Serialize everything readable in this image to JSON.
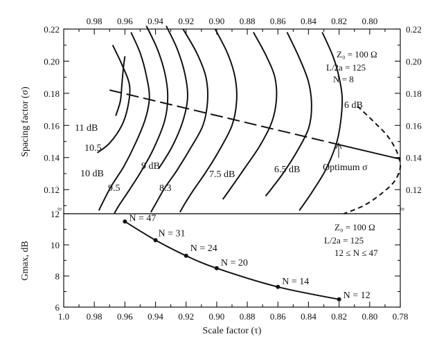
{
  "chart_data": [
    {
      "type": "line",
      "panel": "top",
      "xlabel": "Scale factor (τ)",
      "ylabel": "Spacing factor (σ)",
      "xlim": [
        1.0,
        0.78
      ],
      "ylim": [
        0.105,
        0.22
      ],
      "x_ticks": [
        "0.98",
        "0.96",
        "0.94",
        "0.92",
        "0.90",
        "0.88",
        "0.86",
        "0.84",
        "0.82",
        "0.80"
      ],
      "y_ticks": [
        "0.22",
        "0.20",
        "0.18",
        "0.16",
        "0.14",
        "0.12"
      ],
      "annotation": [
        "Z₀ = 100 Ω",
        "L/2a = 125",
        "N = 8"
      ],
      "contours": [
        {
          "label": "11 dB",
          "points": [
            [
              0.96,
              0.203
            ],
            [
              0.961,
              0.196
            ],
            [
              0.962,
              0.185
            ],
            [
              0.963,
              0.175
            ],
            [
              0.966,
              0.166
            ]
          ]
        },
        {
          "label": "10.5",
          "points": [
            [
              0.968,
              0.21
            ],
            [
              0.962,
              0.198
            ],
            [
              0.957,
              0.185
            ],
            [
              0.958,
              0.172
            ],
            [
              0.962,
              0.16
            ],
            [
              0.97,
              0.149
            ],
            [
              0.978,
              0.143
            ]
          ]
        },
        {
          "label": "10 dB",
          "points": [
            [
              0.956,
              0.218
            ],
            [
              0.95,
              0.205
            ],
            [
              0.946,
              0.191
            ],
            [
              0.944,
              0.177
            ],
            [
              0.947,
              0.163
            ],
            [
              0.954,
              0.147
            ],
            [
              0.961,
              0.134
            ],
            [
              0.969,
              0.122
            ],
            [
              0.975,
              0.111
            ],
            [
              0.977,
              0.107
            ]
          ]
        },
        {
          "label": "9.5",
          "points": [
            [
              0.946,
              0.222
            ],
            [
              0.939,
              0.208
            ],
            [
              0.934,
              0.193
            ],
            [
              0.932,
              0.178
            ],
            [
              0.934,
              0.163
            ],
            [
              0.941,
              0.146
            ],
            [
              0.949,
              0.132
            ],
            [
              0.957,
              0.12
            ],
            [
              0.964,
              0.11
            ],
            [
              0.967,
              0.105
            ]
          ]
        },
        {
          "label": "9 dB",
          "points": [
            [
              0.933,
              0.222
            ],
            [
              0.926,
              0.208
            ],
            [
              0.921,
              0.193
            ],
            [
              0.919,
              0.178
            ],
            [
              0.922,
              0.163
            ],
            [
              0.929,
              0.147
            ],
            [
              0.938,
              0.133
            ]
          ]
        },
        {
          "label": "8.3",
          "points": [
            [
              0.922,
              0.22
            ],
            [
              0.913,
              0.205
            ],
            [
              0.907,
              0.19
            ],
            [
              0.906,
              0.175
            ],
            [
              0.909,
              0.16
            ],
            [
              0.917,
              0.146
            ],
            [
              0.926,
              0.132
            ],
            [
              0.934,
              0.121
            ],
            [
              0.94,
              0.111
            ],
            [
              0.943,
              0.106
            ]
          ]
        },
        {
          "label": "7.5 dB",
          "points": [
            [
              0.901,
              0.22
            ],
            [
              0.893,
              0.205
            ],
            [
              0.888,
              0.19
            ],
            [
              0.887,
              0.175
            ],
            [
              0.89,
              0.16
            ],
            [
              0.898,
              0.145
            ],
            [
              0.907,
              0.131
            ],
            [
              0.915,
              0.12
            ],
            [
              0.921,
              0.111
            ],
            [
              0.924,
              0.106
            ]
          ]
        },
        {
          "label": "",
          "points": [
            [
              0.876,
              0.218
            ],
            [
              0.868,
              0.204
            ],
            [
              0.862,
              0.19
            ],
            [
              0.861,
              0.176
            ],
            [
              0.864,
              0.162
            ],
            [
              0.872,
              0.147
            ],
            [
              0.882,
              0.133
            ],
            [
              0.89,
              0.122
            ],
            [
              0.896,
              0.114
            ]
          ]
        },
        {
          "label": "6.5 dB",
          "points": [
            [
              0.854,
              0.218
            ],
            [
              0.846,
              0.202
            ],
            [
              0.84,
              0.187
            ],
            [
              0.838,
              0.172
            ],
            [
              0.84,
              0.158
            ],
            [
              0.848,
              0.143
            ],
            [
              0.856,
              0.131
            ],
            [
              0.863,
              0.122
            ],
            [
              0.868,
              0.116
            ]
          ]
        },
        {
          "label": "6 dB",
          "points": [
            [
              0.831,
              0.218
            ],
            [
              0.824,
              0.203
            ],
            [
              0.82,
              0.19
            ],
            [
              0.818,
              0.177
            ],
            [
              0.819,
              0.162
            ],
            [
              0.822,
              0.148
            ],
            [
              0.829,
              0.132
            ],
            [
              0.838,
              0.118
            ],
            [
              0.846,
              0.107
            ]
          ]
        },
        {
          "label": "",
          "points": [
            [
              0.808,
              0.172
            ],
            [
              0.797,
              0.162
            ],
            [
              0.788,
              0.153
            ],
            [
              0.782,
              0.143
            ],
            [
              0.78,
              0.134
            ],
            [
              0.784,
              0.125
            ],
            [
              0.793,
              0.117
            ],
            [
              0.804,
              0.11
            ],
            [
              0.817,
              0.105
            ]
          ]
        }
      ],
      "optimum": {
        "label": "Optimum σ",
        "points": [
          [
            0.97,
            0.182
          ],
          [
            0.82,
            0.148
          ],
          [
            0.78,
            0.139
          ]
        ]
      }
    },
    {
      "type": "line",
      "panel": "bottom",
      "xlabel": "Scale factor (τ)",
      "ylabel": "Gmax, dB",
      "xlim": [
        1.0,
        0.78
      ],
      "ylim": [
        6,
        12
      ],
      "x_ticks": [
        "1.0",
        "0.98",
        "0.96",
        "0.94",
        "0.92",
        "0.90",
        "0.88",
        "0.86",
        "0.84",
        "0.82",
        "0.80",
        "0.78"
      ],
      "y_ticks": [
        "12",
        "10",
        "8",
        "6"
      ],
      "annotation": [
        "Z₀ = 100 Ω",
        "L/2a = 125",
        "12 ≤ N ≤ 47"
      ],
      "series": [
        {
          "points": [
            {
              "x": 0.96,
              "y": 11.5,
              "label": "N = 47"
            },
            {
              "x": 0.94,
              "y": 10.3,
              "label": "N = 31"
            },
            {
              "x": 0.92,
              "y": 9.3,
              "label": "N = 24"
            },
            {
              "x": 0.9,
              "y": 8.5,
              "label": "N = 20"
            },
            {
              "x": 0.86,
              "y": 7.3,
              "label": "N = 14"
            },
            {
              "x": 0.82,
              "y": 6.5,
              "label": "N = 12"
            }
          ]
        }
      ]
    }
  ]
}
